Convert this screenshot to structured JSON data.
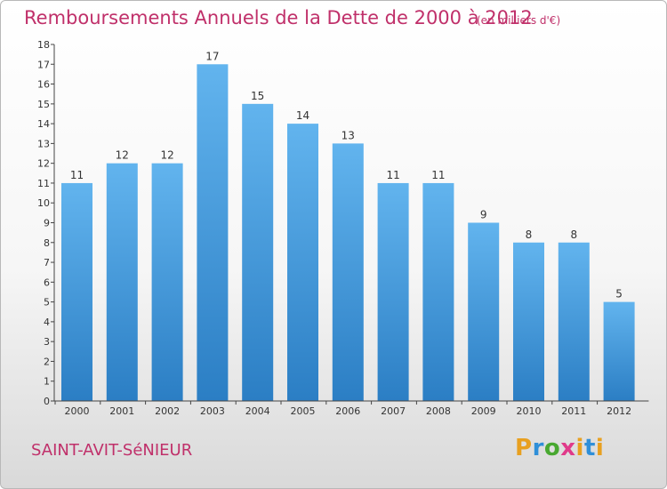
{
  "header": {
    "title": "Remboursements Annuels de la Dette de 2000 à 2012",
    "unit": "(en milliers d'€)"
  },
  "footer": {
    "commune": "SAINT-AVIT-SéNIEUR",
    "logo": {
      "text": "Proxiti",
      "letter_colors": [
        "#e8a020",
        "#2f8fd8",
        "#48a830",
        "#e03a8a",
        "#e8a020",
        "#2f8fd8",
        "#e8a020"
      ]
    }
  },
  "colors": {
    "bar_top": "#62b4ee",
    "bar_bottom": "#2b7ec4",
    "title": "#c0306a",
    "axis": "#444444",
    "text": "#333333"
  },
  "chart_data": {
    "type": "bar",
    "title": "Remboursements Annuels de la Dette de 2000 à 2012",
    "subtitle": "(en milliers d'€)",
    "xlabel": "",
    "ylabel": "",
    "categories": [
      "2000",
      "2001",
      "2002",
      "2003",
      "2004",
      "2005",
      "2006",
      "2007",
      "2008",
      "2009",
      "2010",
      "2011",
      "2012"
    ],
    "values": [
      11,
      12,
      12,
      17,
      15,
      14,
      13,
      11,
      11,
      9,
      8,
      8,
      5
    ],
    "data_labels": [
      "11",
      "12",
      "12",
      "17",
      "15",
      "14",
      "13",
      "11",
      "11",
      "9",
      "8",
      "8",
      "5"
    ],
    "ylim": [
      0,
      18
    ],
    "yticks": [
      0,
      1,
      2,
      3,
      4,
      5,
      6,
      7,
      8,
      9,
      10,
      11,
      12,
      13,
      14,
      15,
      16,
      17,
      18
    ],
    "grid": false,
    "legend": "none"
  }
}
